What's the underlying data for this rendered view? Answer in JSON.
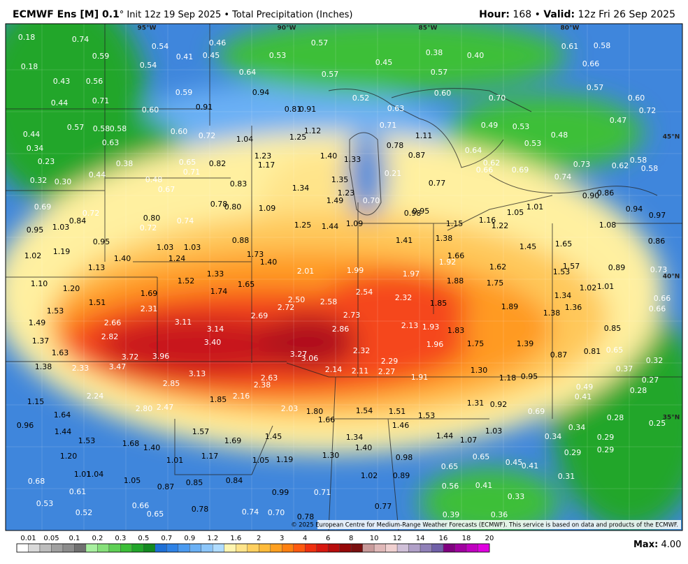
{
  "header": {
    "model": "ECMWF Ens [M] 0.1",
    "description": "° Init 12z 19 Sep 2025 • Total Precipitation (Inches)",
    "hour_label": "Hour:",
    "hour_value": "168",
    "separator": "•",
    "valid_label": "Valid:",
    "valid_value": "12z Fri 26 Sep 2025"
  },
  "map": {
    "longitude_labels": [
      "95°W",
      "90°W",
      "85°W",
      "80°W"
    ],
    "latitude_labels": [
      "45°N",
      "40°N",
      "35°N"
    ],
    "values": [
      "0.18",
      "0.74",
      "0.54",
      "0.46",
      "0.57",
      "0.38",
      "0.40",
      "0.61",
      "0.58",
      "0.59",
      "0.41",
      "0.45",
      "0.53",
      "0.45",
      "0.66",
      "0.18",
      "0.54",
      "0.64",
      "0.57",
      "0.57",
      "0.43",
      "0.56",
      "0.57",
      "0.59",
      "0.94",
      "0.52",
      "0.60",
      "0.70",
      "0.60",
      "0.44",
      "0.71",
      "0.91",
      "0.81",
      "0.91",
      "0.63",
      "0.72",
      "0.60",
      "0.47",
      "0.57",
      "0.58",
      "0.58",
      "0.71",
      "1.11",
      "0.49",
      "0.53",
      "0.44",
      "0.60",
      "0.72",
      "1.12",
      "1.25",
      "0.48",
      "0.63",
      "1.04",
      "0.78",
      "0.53",
      "0.34",
      "0.64",
      "0.87",
      "1.23",
      "1.40",
      "1.33",
      "0.23",
      "0.38",
      "0.65",
      "0.82",
      "1.17",
      "0.62",
      "0.73",
      "0.62",
      "0.58",
      "0.58",
      "0.66",
      "0.69",
      "0.44",
      "0.71",
      "0.21",
      "0.32",
      "0.30",
      "0.48",
      "0.83",
      "1.35",
      "0.77",
      "0.74",
      "0.67",
      "1.34",
      "1.23",
      "0.86",
      "0.90",
      "0.69",
      "0.78",
      "0.80",
      "1.49",
      "0.70",
      "1.09",
      "0.95",
      "0.98",
      "1.05",
      "1.01",
      "0.94",
      "0.97",
      "0.72",
      "0.84",
      "0.80",
      "0.74",
      "1.25",
      "1.44",
      "1.09",
      "1.15",
      "1.16",
      "1.22",
      "1.08",
      "0.95",
      "1.03",
      "0.72",
      "0.95",
      "0.88",
      "1.41",
      "1.38",
      "0.86",
      "1.02",
      "1.19",
      "1.03",
      "1.03",
      "1.73",
      "1.66",
      "1.45",
      "1.65",
      "1.40",
      "1.24",
      "1.40",
      "1.92",
      "1.62",
      "1.57",
      "0.89",
      "0.73",
      "1.13",
      "1.33",
      "2.01",
      "1.99",
      "1.97",
      "1.53",
      "1.10",
      "1.20",
      "1.52",
      "1.65",
      "1.88",
      "1.75",
      "1.02",
      "1.01",
      "1.74",
      "1.69",
      "2.54",
      "1.34",
      "0.66",
      "1.51",
      "2.50",
      "2.58",
      "2.32",
      "1.85",
      "1.36",
      "0.66",
      "1.53",
      "2.31",
      "2.72",
      "2.69",
      "2.73",
      "1.89",
      "1.38",
      "1.49",
      "2.66",
      "3.11",
      "2.13",
      "1.93",
      "1.83",
      "0.85",
      "3.14",
      "2.86",
      "1.37",
      "2.82",
      "3.40",
      "1.96",
      "1.75",
      "1.39",
      "1.63",
      "2.32",
      "0.81",
      "0.65",
      "3.72",
      "3.96",
      "3.27",
      "3.06",
      "2.29",
      "0.87",
      "0.32",
      "1.38",
      "2.33",
      "3.47",
      "2.14",
      "2.11",
      "2.27",
      "1.30",
      "0.37",
      "3.13",
      "2.63",
      "1.91",
      "1.18",
      "0.95",
      "0.27",
      "2.85",
      "2.38",
      "0.49",
      "0.28",
      "2.24",
      "1.85",
      "2.16",
      "0.41",
      "1.15",
      "2.80",
      "2.47",
      "2.03",
      "1.80",
      "1.54",
      "1.51",
      "1.31",
      "0.92",
      "1.64",
      "1.53",
      "0.69",
      "0.28",
      "0.25",
      "0.96",
      "1.66",
      "1.46",
      "0.34",
      "1.44",
      "1.57",
      "1.45",
      "1.34",
      "1.44",
      "1.07",
      "1.03",
      "0.34",
      "0.29",
      "1.53",
      "1.69",
      "1.40",
      "1.68",
      "1.40",
      "0.29",
      "1.20",
      "1.17",
      "1.30",
      "0.98",
      "0.65",
      "0.29",
      "1.01",
      "1.05",
      "1.19",
      "0.45",
      "0.41",
      "0.65",
      "1.01",
      "1.04",
      "1.02",
      "0.89",
      "0.31",
      "0.68",
      "1.05",
      "0.85",
      "0.84",
      "0.56",
      "0.41",
      "0.87",
      "0.61",
      "0.99",
      "0.71",
      "0.33",
      "0.53",
      "0.66",
      "0.78",
      "0.77",
      "0.52",
      "0.65",
      "0.74",
      "0.70",
      "0.78",
      "0.39",
      "0.36"
    ]
  },
  "copyright": "© 2025 European Centre for Medium-Range Weather Forecasts (ECMWF). This service is based on data and products of the ECMWF.",
  "legend": {
    "labels": [
      "0.01",
      "0.05",
      "0.1",
      "0.2",
      "0.3",
      "0.5",
      "0.7",
      "0.9",
      "1.2",
      "1.6",
      "2",
      "3",
      "4",
      "6",
      "8",
      "10",
      "12",
      "14",
      "16",
      "18",
      "20"
    ],
    "colors": [
      "#ffffff",
      "#d9d9d9",
      "#bdbdbd",
      "#a0a0a0",
      "#8c8c8c",
      "#707070",
      "#a8f0a0",
      "#86e07a",
      "#5fd055",
      "#3cbf38",
      "#22a62a",
      "#138a20",
      "#1e6fd6",
      "#2e82e6",
      "#4a9af0",
      "#6ab0f5",
      "#8cc6fa",
      "#b0dcff",
      "#fff5b0",
      "#ffe48a",
      "#ffd060",
      "#ffbb3a",
      "#ffa020",
      "#ff8010",
      "#ff5a10",
      "#f03010",
      "#d81810",
      "#b80c0c",
      "#960808",
      "#7a1010",
      "#c89a9a",
      "#e0b8b8",
      "#f0d0d0",
      "#d0c0d8",
      "#b0a0c8",
      "#9080b8",
      "#7060a8",
      "#800080",
      "#a000a0",
      "#c000c0",
      "#e000e0"
    ]
  },
  "max": {
    "label": "Max:",
    "value": "4.00"
  }
}
